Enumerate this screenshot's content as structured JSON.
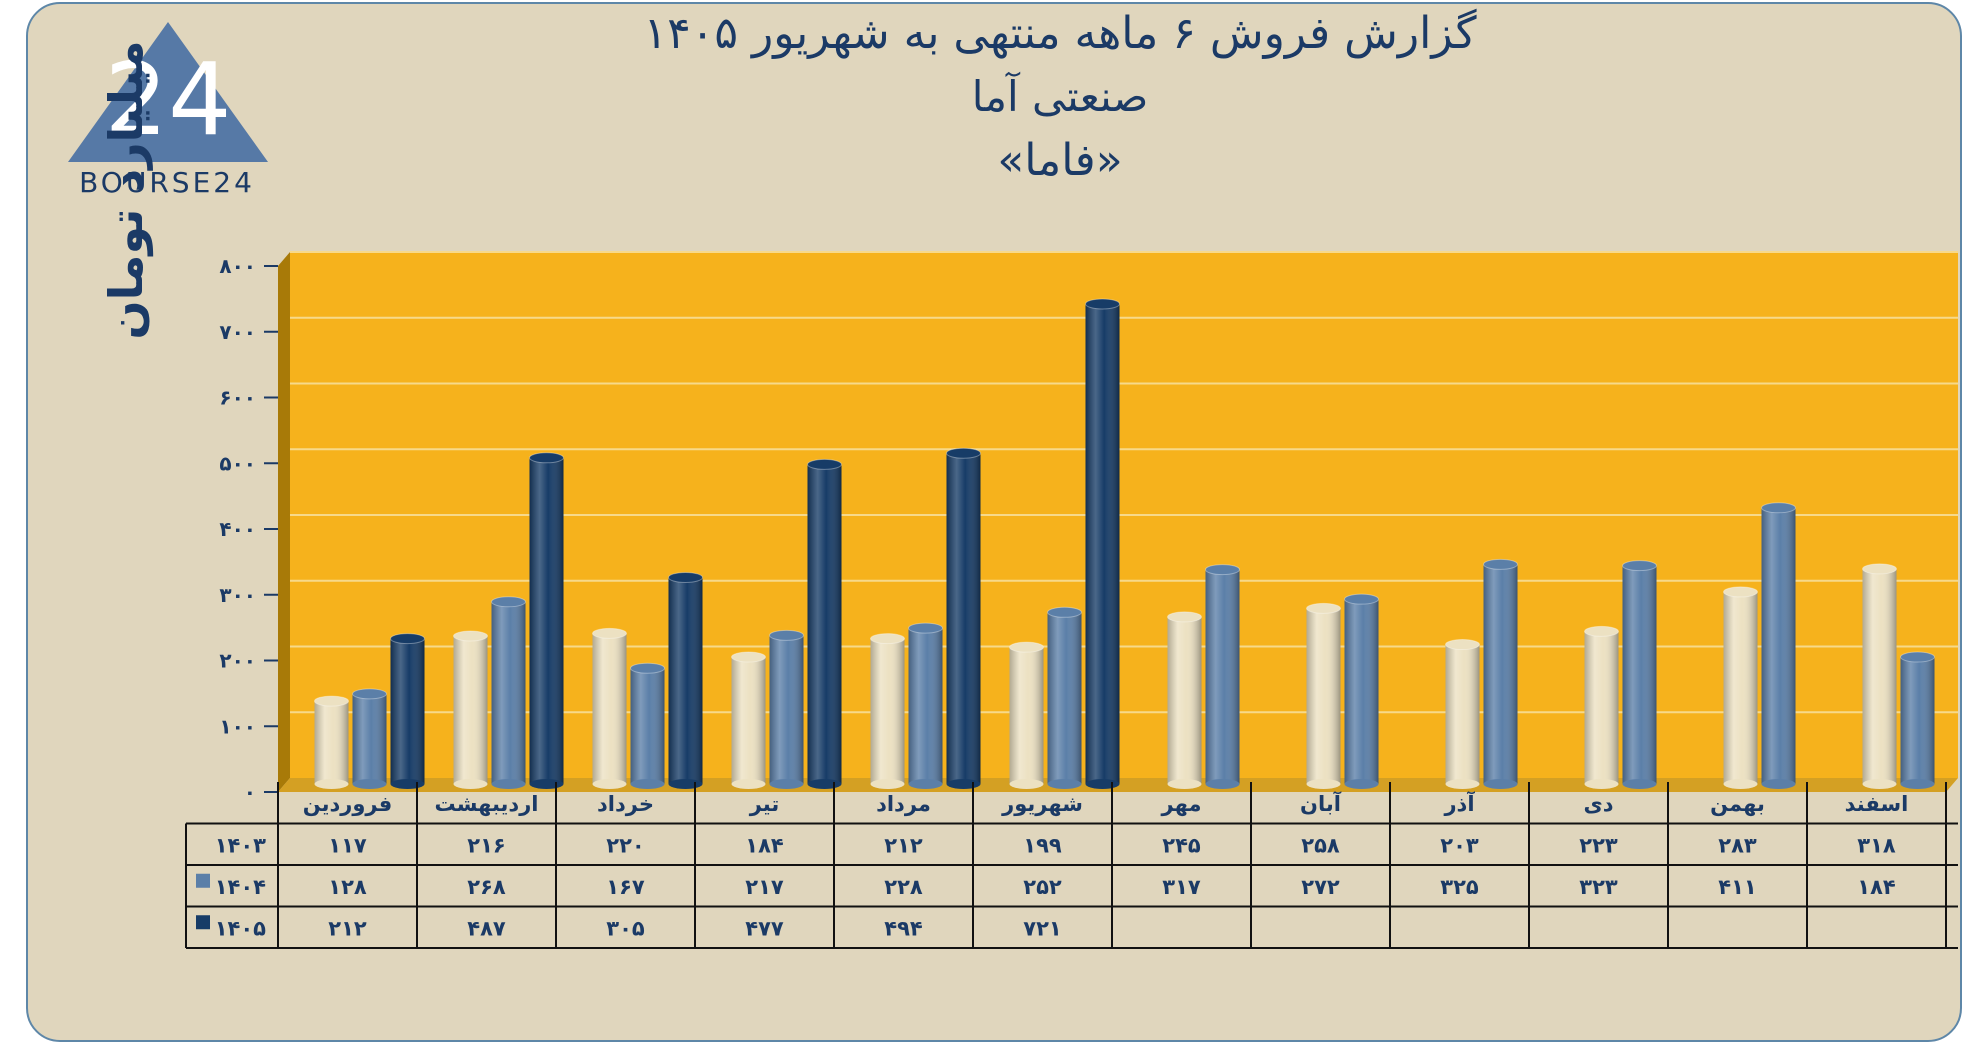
{
  "header": {
    "title_line1": "گزارش  فروش ۶ ماهه منتهی به شهریور ۱۴۰۵",
    "title_line2": "صنعتی آما",
    "title_line3": "«فاما»"
  },
  "logo": {
    "text": "BOURSE24",
    "mark": "24"
  },
  "colors": {
    "plot_bg": "#f6b21c",
    "s1403": "#ece1c2",
    "s1404": "#5b7fa8",
    "s1405": "#173c67",
    "text": "#1b3a66"
  },
  "chart_data": {
    "type": "bar",
    "ylabel": "میلیارد تومان",
    "ylim": [
      0,
      800
    ],
    "yticks": [
      "۰",
      "۱۰۰",
      "۲۰۰",
      "۳۰۰",
      "۴۰۰",
      "۵۰۰",
      "۶۰۰",
      "۷۰۰",
      "۸۰۰"
    ],
    "grid": true,
    "categories": [
      "فروردین",
      "اردیبهشت",
      "خرداد",
      "تیر",
      "مرداد",
      "شهریور",
      "مهر",
      "آبان",
      "آذر",
      "دی",
      "بهمن",
      "اسفند"
    ],
    "series": [
      {
        "name": "۱۴۰۳",
        "values": [
          117,
          216,
          220,
          184,
          212,
          199,
          245,
          258,
          203,
          223,
          283,
          318
        ],
        "labels": [
          "۱۱۷",
          "۲۱۶",
          "۲۲۰",
          "۱۸۴",
          "۲۱۲",
          "۱۹۹",
          "۲۴۵",
          "۲۵۸",
          "۲۰۳",
          "۲۲۳",
          "۲۸۳",
          "۳۱۸"
        ]
      },
      {
        "name": "۱۴۰۴",
        "values": [
          128,
          268,
          167,
          217,
          228,
          252,
          317,
          272,
          325,
          323,
          411,
          184
        ],
        "labels": [
          "۱۲۸",
          "۲۶۸",
          "۱۶۷",
          "۲۱۷",
          "۲۲۸",
          "۲۵۲",
          "۳۱۷",
          "۲۷۲",
          "۳۲۵",
          "۳۲۳",
          "۴۱۱",
          "۱۸۴"
        ]
      },
      {
        "name": "۱۴۰۵",
        "values": [
          212,
          487,
          305,
          477,
          494,
          721,
          null,
          null,
          null,
          null,
          null,
          null
        ],
        "labels": [
          "۲۱۲",
          "۴۸۷",
          "۳۰۵",
          "۴۷۷",
          "۴۹۴",
          "۷۲۱",
          "",
          "",
          "",
          "",
          "",
          ""
        ]
      }
    ]
  }
}
